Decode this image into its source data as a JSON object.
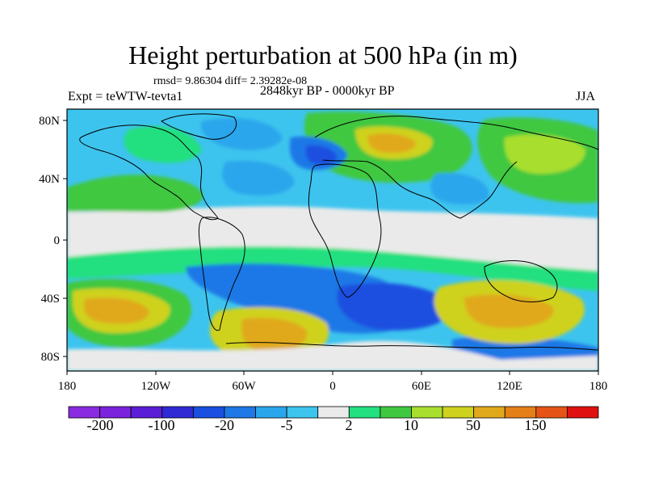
{
  "title": "Height perturbation at 500 hPa (in m)",
  "stats": "rmsd= 9.86304 diff= 2.39282e-08",
  "experiment": "Expt = teWTW-tevta1",
  "period": "2848kyr BP - 0000kyr BP",
  "season": "JJA",
  "map": {
    "lat_labels": [
      "80N",
      "40N",
      "0",
      "40S",
      "80S"
    ],
    "lon_labels": [
      "180",
      "120W",
      "60W",
      "0",
      "60E",
      "120E",
      "180"
    ]
  },
  "colorbar": {
    "colors": [
      "#8a2be2",
      "#7b22dc",
      "#5a1ed6",
      "#2f2ad4",
      "#1a4fe0",
      "#1e78e6",
      "#2aa6ec",
      "#3dc4ee",
      "#eaeaea",
      "#22e07f",
      "#40c840",
      "#a8df2e",
      "#cfd21e",
      "#e0a91c",
      "#e57f18",
      "#e55416",
      "#e01010"
    ],
    "labels": [
      "-200",
      "-100",
      "-20",
      "-5",
      "2",
      "10",
      "50",
      "150"
    ]
  }
}
